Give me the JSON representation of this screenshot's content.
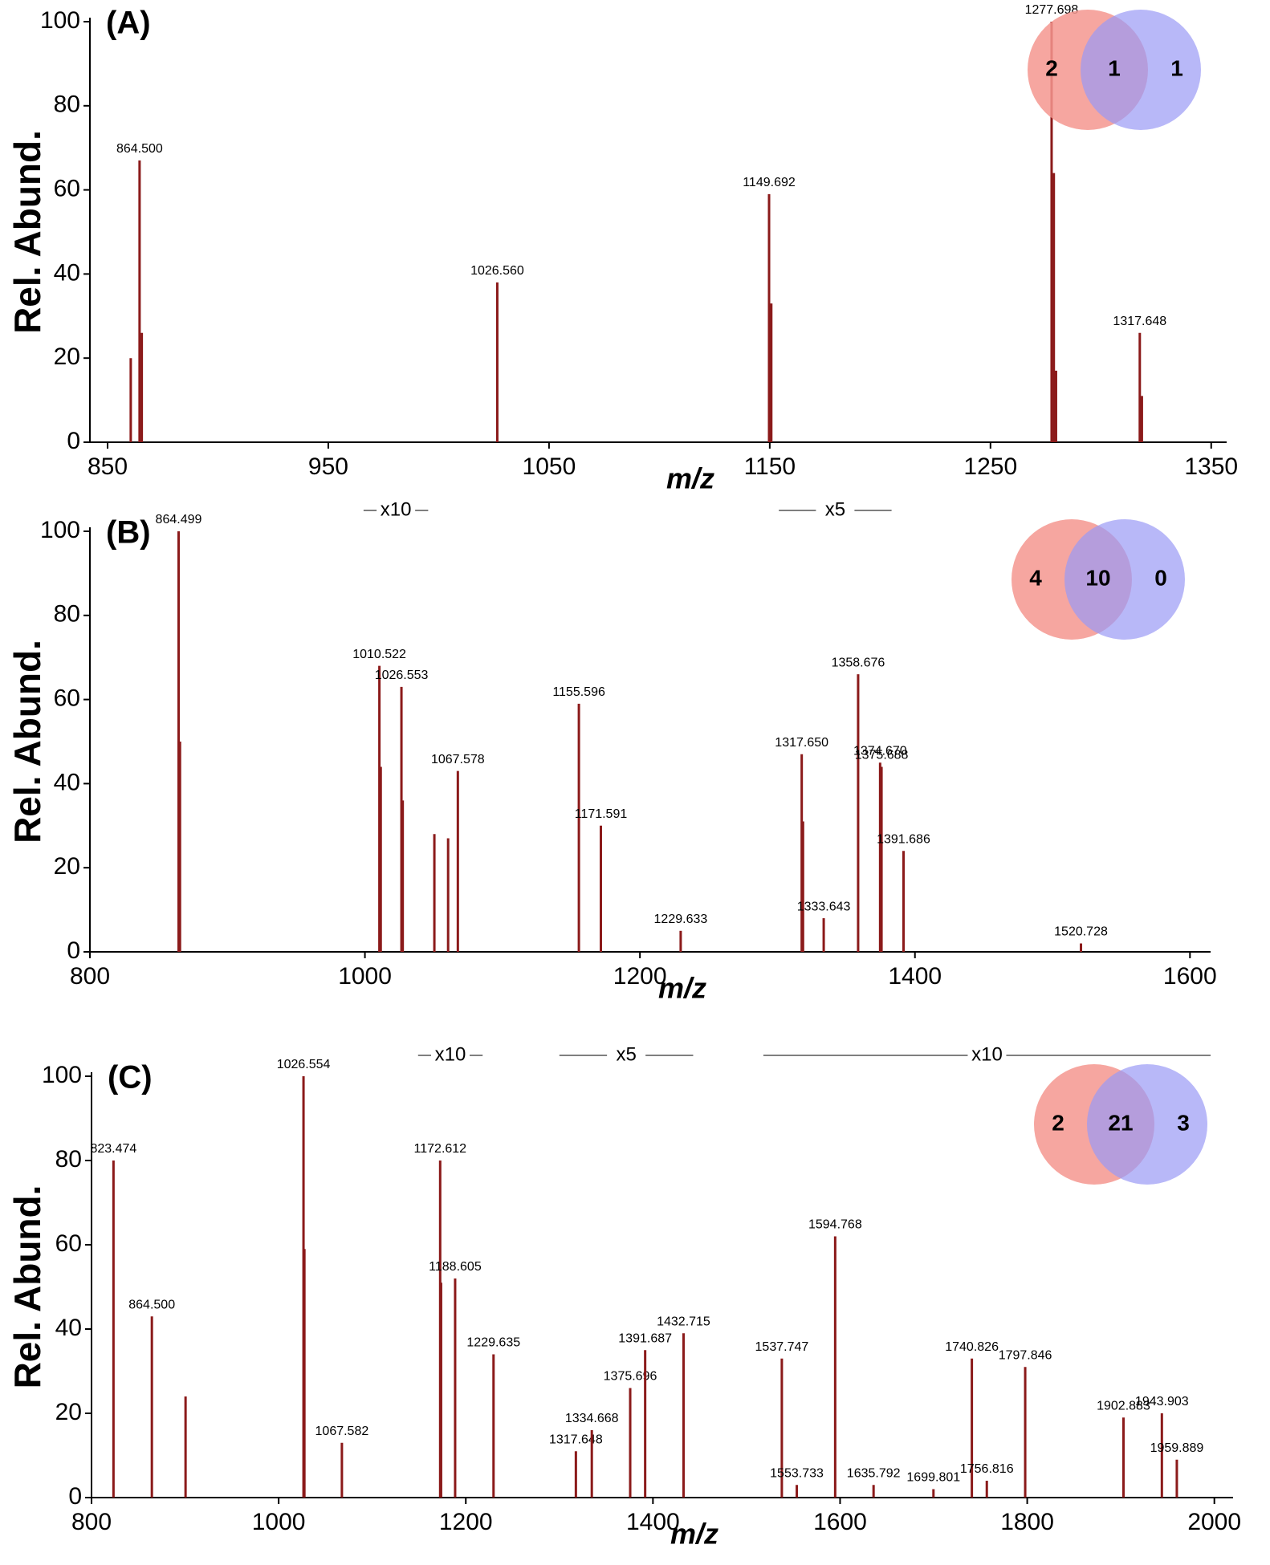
{
  "chart_data": [
    {
      "type": "stem",
      "title": "(A)",
      "ylabel": "Rel. Abund.",
      "xlabel": "m/z",
      "color": "#8b1a1a",
      "xlim": [
        842,
        1357
      ],
      "xticks": [
        850,
        950,
        1050,
        1150,
        1250,
        1350
      ],
      "ylim": [
        0,
        100
      ],
      "yticks": [
        0,
        20,
        40,
        60,
        80,
        100
      ],
      "x": [
        860.5,
        864.5,
        865.5,
        1026.56,
        1149.692,
        1150.7,
        1277.698,
        1278.7,
        1279.7,
        1317.648,
        1318.6
      ],
      "values": [
        20,
        67,
        26,
        38,
        59,
        33,
        100,
        64,
        17,
        26,
        11
      ],
      "peak_labels": [
        null,
        "864.500",
        null,
        "1026.560",
        "1149.692",
        null,
        "1277.698",
        null,
        null,
        "1317.648",
        null
      ],
      "zoom_regions": [],
      "venn": {
        "left": 2,
        "both": 1,
        "right": 1
      }
    },
    {
      "type": "stem",
      "title": "(B)",
      "ylabel": "Rel. Abund.",
      "xlabel": "m/z",
      "color": "#8b1a1a",
      "xlim": [
        800,
        1615
      ],
      "xticks": [
        800,
        1000,
        1200,
        1400,
        1600
      ],
      "ylim": [
        0,
        100
      ],
      "yticks": [
        0,
        20,
        40,
        60,
        80,
        100
      ],
      "x": [
        864.499,
        865.5,
        1010.522,
        1011.5,
        1026.553,
        1027.5,
        1050.5,
        1060.5,
        1067.578,
        1155.596,
        1171.591,
        1229.633,
        1317.65,
        1318.6,
        1333.643,
        1358.676,
        1374.67,
        1375.688,
        1391.686,
        1520.728
      ],
      "values": [
        100,
        50,
        68,
        44,
        63,
        36,
        28,
        27,
        43,
        59,
        30,
        5,
        47,
        31,
        8,
        66,
        45,
        44,
        24,
        2
      ],
      "peak_labels": [
        "864.499",
        null,
        "1010.522",
        null,
        "1026.553",
        null,
        null,
        null,
        "1067.578",
        "1155.596",
        "1171.591",
        "1229.633",
        "1317.650",
        null,
        "1333.643",
        "1358.676",
        "1374.670",
        "1375.688",
        "1391.686",
        "1520.728"
      ],
      "zoom_regions": [
        {
          "label": "x10",
          "range": [
            999,
            1046
          ]
        },
        {
          "label": "x5",
          "range": [
            1301,
            1383
          ]
        }
      ],
      "venn": {
        "left": 4,
        "both": 10,
        "right": 0
      }
    },
    {
      "type": "stem",
      "title": "(C)",
      "ylabel": "Rel. Abund.",
      "xlabel": "m/z",
      "color": "#8b1a1a",
      "xlim": [
        800,
        2020
      ],
      "xticks": [
        800,
        1000,
        1200,
        1400,
        1600,
        1800,
        2000
      ],
      "ylim": [
        0,
        100
      ],
      "yticks": [
        0,
        20,
        40,
        60,
        80,
        100
      ],
      "x": [
        823.474,
        864.5,
        900.5,
        1026.554,
        1027.5,
        1067.582,
        1172.612,
        1173.6,
        1188.605,
        1229.635,
        1317.648,
        1334.668,
        1375.696,
        1391.687,
        1432.715,
        1537.747,
        1553.733,
        1594.768,
        1635.792,
        1699.801,
        1740.826,
        1756.816,
        1797.846,
        1902.883,
        1943.903,
        1959.889
      ],
      "values": [
        80,
        43,
        24,
        100,
        59,
        13,
        80,
        51,
        52,
        34,
        11,
        16,
        26,
        35,
        39,
        33,
        3,
        62,
        3,
        2,
        33,
        4,
        31,
        19,
        20,
        9
      ],
      "peak_labels": [
        "823.474",
        "864.500",
        null,
        "1026.554",
        null,
        "1067.582",
        "1172.612",
        null,
        "1188.605",
        "1229.635",
        "1317.648",
        "1334.668",
        "1375.696",
        "1391.687",
        "1432.715",
        "1537.747",
        "1553.733",
        "1594.768",
        "1635.792",
        "1699.801",
        "1740.826",
        "1756.816",
        "1797.846",
        "1902.883",
        "1943.903",
        "1959.889"
      ],
      "zoom_regions": [
        {
          "label": "x10",
          "range": [
            1149,
            1218
          ]
        },
        {
          "label": "x5",
          "range": [
            1300,
            1443
          ]
        },
        {
          "label": "x10",
          "range": [
            1518,
            1996
          ]
        }
      ],
      "venn": {
        "left": 2,
        "both": 21,
        "right": 3
      }
    }
  ]
}
